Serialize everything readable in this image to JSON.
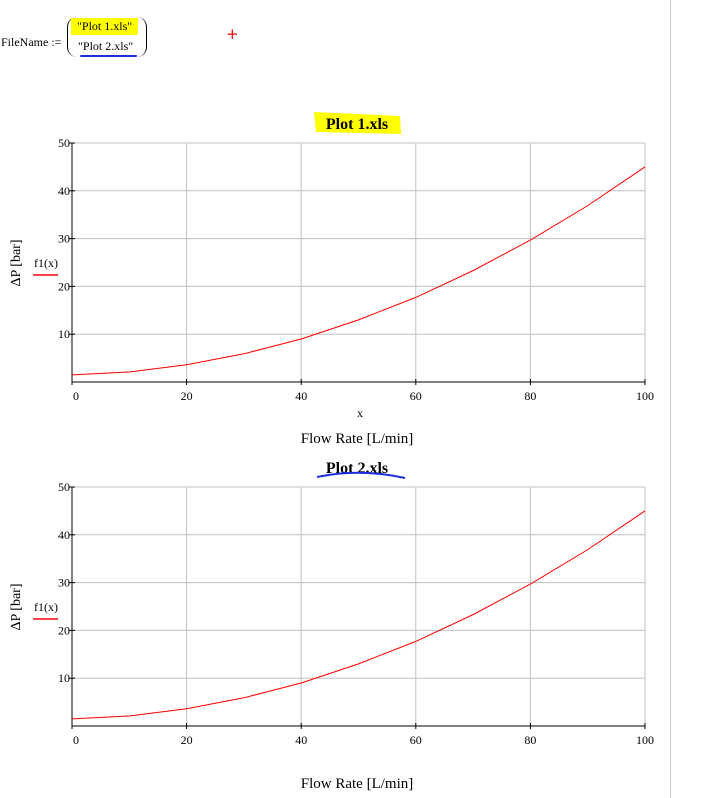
{
  "worksheet": {
    "filename_label": "FileName :=",
    "filename_values": [
      "\"Plot 1.xls\"",
      "\"Plot 2.xls\""
    ],
    "highlight_color": "#ffff00",
    "ink_color": "#1a2be0"
  },
  "chart_data": [
    {
      "type": "line",
      "title": "Plot 1.xls",
      "xlabel": "Flow Rate [L/min]",
      "x_var_label": "x",
      "ylabel": "ΔP [bar]",
      "xlim": [
        0,
        100
      ],
      "ylim": [
        0,
        50
      ],
      "xticks": [
        0,
        20,
        40,
        60,
        80,
        100
      ],
      "yticks": [
        10,
        20,
        30,
        40,
        50
      ],
      "grid": true,
      "series": [
        {
          "name": "f1(x)",
          "color": "#ff0000",
          "x": [
            0,
            10,
            20,
            30,
            40,
            50,
            60,
            70,
            80,
            90,
            100
          ],
          "y": [
            1.5,
            2.1,
            3.6,
            5.9,
            9.0,
            13.0,
            17.7,
            23.3,
            29.7,
            36.9,
            45.0
          ]
        }
      ]
    },
    {
      "type": "line",
      "title": "Plot 2.xls",
      "xlabel": "Flow Rate [L/min]",
      "ylabel": "ΔP [bar]",
      "xlim": [
        0,
        100
      ],
      "ylim": [
        0,
        50
      ],
      "xticks": [
        0,
        20,
        40,
        60,
        80,
        100
      ],
      "yticks": [
        10,
        20,
        30,
        40,
        50
      ],
      "grid": true,
      "series": [
        {
          "name": "f1(x)",
          "color": "#ff0000",
          "x": [
            0,
            10,
            20,
            30,
            40,
            50,
            60,
            70,
            80,
            90,
            100
          ],
          "y": [
            1.5,
            2.1,
            3.6,
            5.9,
            9.0,
            13.0,
            17.7,
            23.3,
            29.7,
            36.9,
            45.0
          ]
        }
      ]
    }
  ]
}
